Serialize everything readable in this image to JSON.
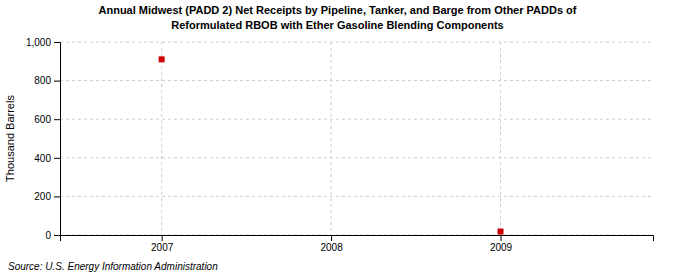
{
  "chart_data": {
    "type": "scatter",
    "title": "Annual Midwest (PADD 2) Net Receipts by Pipeline, Tanker, and Barge from Other PADDs of",
    "subtitle": "Reformulated RBOB with Ether Gasoline Blending Components",
    "ylabel": "Thousand Barrels",
    "source": "Source: U.S. Energy Information Administration",
    "x": [
      2007,
      2009
    ],
    "values": [
      910,
      18
    ],
    "color": "#cc0000",
    "marker": "square",
    "xlim": [
      2006.4,
      2009.9
    ],
    "xticks": [
      2007,
      2008,
      2009
    ],
    "ylim": [
      0,
      1000
    ],
    "yticks": [
      0,
      200,
      400,
      600,
      800,
      {
        "value": 1000,
        "label": "1,000"
      }
    ],
    "grid": true
  }
}
